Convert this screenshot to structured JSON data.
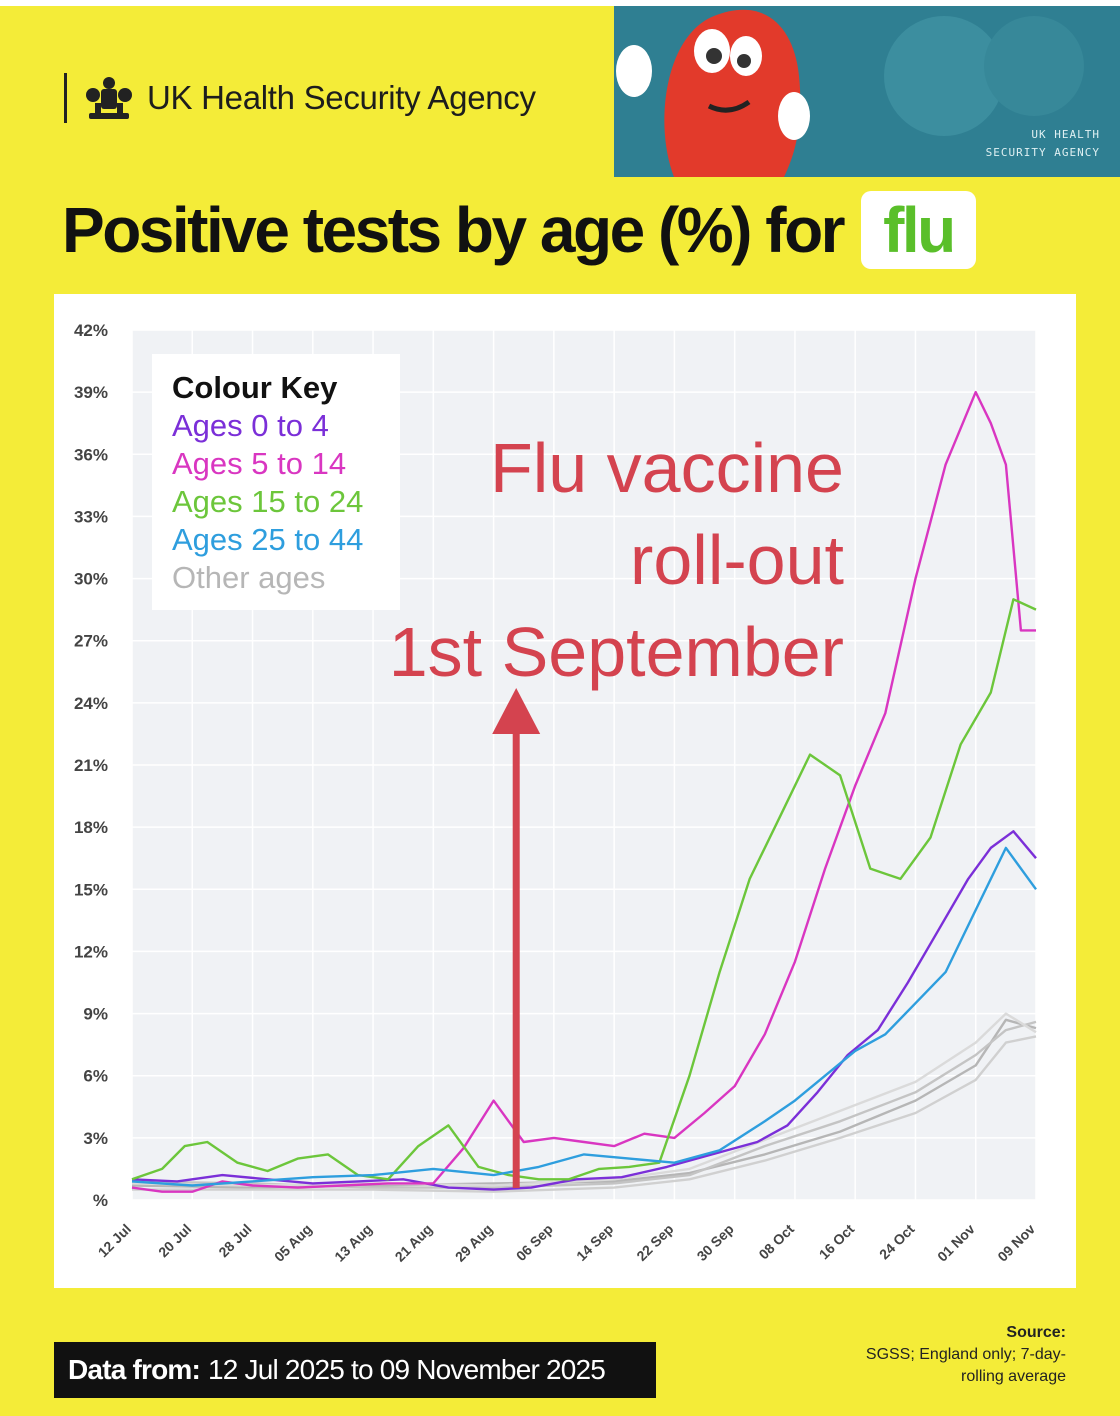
{
  "header": {
    "agency_name": "UK Health Security Agency",
    "banner_text": "UK HEALTH\nSECURITY AGENCY"
  },
  "title": {
    "main": "Positive tests by age (%) for",
    "highlight": "flu"
  },
  "legend": {
    "title": "Colour Key",
    "items": [
      {
        "label": "Ages 0 to 4",
        "color": "#7b2fd8"
      },
      {
        "label": "Ages 5 to 14",
        "color": "#d936c1"
      },
      {
        "label": "Ages 15 to 24",
        "color": "#6cc63b"
      },
      {
        "label": "Ages 25 to 44",
        "color": "#2e9ede"
      },
      {
        "label": "Other ages",
        "color": "#b6b6b6"
      }
    ]
  },
  "annotation": {
    "line1": "Flu vaccine",
    "line2": "roll-out",
    "line3": "1st September",
    "color": "#d4434f"
  },
  "footer": {
    "data_from_label": "Data from:",
    "data_from_value": "12 Jul 2025 to 09 November 2025",
    "source_label": "Source:",
    "source_line1": "SGSS; England only; 7-day-",
    "source_line2": "rolling average"
  },
  "chart_data": {
    "type": "line",
    "ylim": [
      0,
      42
    ],
    "y_ticks": [
      "%",
      "3%",
      "6%",
      "9%",
      "12%",
      "15%",
      "18%",
      "21%",
      "24%",
      "27%",
      "30%",
      "33%",
      "36%",
      "39%",
      "42%"
    ],
    "x_ticks": [
      "12 Jul",
      "20 Jul",
      "28 Jul",
      "05 Aug",
      "13 Aug",
      "21 Aug",
      "29 Aug",
      "06 Sep",
      "14 Sep",
      "22 Sep",
      "30 Sep",
      "08 Oct",
      "16 Oct",
      "24 Oct",
      "01 Nov",
      "09 Nov"
    ],
    "x_range": [
      "2025-07-12",
      "2025-11-09"
    ],
    "annotation_arrow_date": "2025-09-01",
    "grid": true,
    "series": [
      {
        "name": "Ages 0 to 4",
        "color": "#7b2fd8",
        "points": [
          [
            "2025-07-12",
            1.0
          ],
          [
            "2025-07-18",
            0.9
          ],
          [
            "2025-07-24",
            1.2
          ],
          [
            "2025-07-30",
            1.0
          ],
          [
            "2025-08-05",
            0.8
          ],
          [
            "2025-08-11",
            0.9
          ],
          [
            "2025-08-17",
            1.0
          ],
          [
            "2025-08-23",
            0.6
          ],
          [
            "2025-08-29",
            0.5
          ],
          [
            "2025-09-03",
            0.6
          ],
          [
            "2025-09-09",
            1.0
          ],
          [
            "2025-09-15",
            1.1
          ],
          [
            "2025-09-21",
            1.6
          ],
          [
            "2025-09-27",
            2.2
          ],
          [
            "2025-10-03",
            2.8
          ],
          [
            "2025-10-07",
            3.6
          ],
          [
            "2025-10-11",
            5.2
          ],
          [
            "2025-10-15",
            7.0
          ],
          [
            "2025-10-19",
            8.2
          ],
          [
            "2025-10-23",
            10.5
          ],
          [
            "2025-10-27",
            13.0
          ],
          [
            "2025-10-31",
            15.5
          ],
          [
            "2025-11-03",
            17.0
          ],
          [
            "2025-11-06",
            17.8
          ],
          [
            "2025-11-09",
            16.5
          ]
        ]
      },
      {
        "name": "Ages 5 to 14",
        "color": "#d936c1",
        "points": [
          [
            "2025-07-12",
            0.6
          ],
          [
            "2025-07-16",
            0.4
          ],
          [
            "2025-07-20",
            0.4
          ],
          [
            "2025-07-24",
            0.9
          ],
          [
            "2025-07-28",
            0.7
          ],
          [
            "2025-08-03",
            0.6
          ],
          [
            "2025-08-09",
            0.7
          ],
          [
            "2025-08-15",
            0.8
          ],
          [
            "2025-08-21",
            0.8
          ],
          [
            "2025-08-25",
            2.5
          ],
          [
            "2025-08-29",
            4.8
          ],
          [
            "2025-09-02",
            2.8
          ],
          [
            "2025-09-06",
            3.0
          ],
          [
            "2025-09-10",
            2.8
          ],
          [
            "2025-09-14",
            2.6
          ],
          [
            "2025-09-18",
            3.2
          ],
          [
            "2025-09-22",
            3.0
          ],
          [
            "2025-09-26",
            4.2
          ],
          [
            "2025-09-30",
            5.5
          ],
          [
            "2025-10-04",
            8.0
          ],
          [
            "2025-10-08",
            11.5
          ],
          [
            "2025-10-12",
            16.0
          ],
          [
            "2025-10-16",
            20.0
          ],
          [
            "2025-10-20",
            23.5
          ],
          [
            "2025-10-24",
            30.0
          ],
          [
            "2025-10-28",
            35.5
          ],
          [
            "2025-11-01",
            39.0
          ],
          [
            "2025-11-03",
            37.5
          ],
          [
            "2025-11-05",
            35.5
          ],
          [
            "2025-11-07",
            27.5
          ],
          [
            "2025-11-09",
            27.5
          ]
        ]
      },
      {
        "name": "Ages 15 to 24",
        "color": "#6cc63b",
        "points": [
          [
            "2025-07-12",
            1.0
          ],
          [
            "2025-07-16",
            1.5
          ],
          [
            "2025-07-19",
            2.6
          ],
          [
            "2025-07-22",
            2.8
          ],
          [
            "2025-07-26",
            1.8
          ],
          [
            "2025-07-30",
            1.4
          ],
          [
            "2025-08-03",
            2.0
          ],
          [
            "2025-08-07",
            2.2
          ],
          [
            "2025-08-11",
            1.2
          ],
          [
            "2025-08-15",
            1.0
          ],
          [
            "2025-08-19",
            2.6
          ],
          [
            "2025-08-23",
            3.6
          ],
          [
            "2025-08-27",
            1.6
          ],
          [
            "2025-08-31",
            1.2
          ],
          [
            "2025-09-04",
            1.0
          ],
          [
            "2025-09-08",
            1.0
          ],
          [
            "2025-09-12",
            1.5
          ],
          [
            "2025-09-16",
            1.6
          ],
          [
            "2025-09-20",
            1.8
          ],
          [
            "2025-09-24",
            6.0
          ],
          [
            "2025-09-28",
            11.0
          ],
          [
            "2025-10-02",
            15.5
          ],
          [
            "2025-10-06",
            18.5
          ],
          [
            "2025-10-10",
            21.5
          ],
          [
            "2025-10-14",
            20.5
          ],
          [
            "2025-10-18",
            16.0
          ],
          [
            "2025-10-22",
            15.5
          ],
          [
            "2025-10-26",
            17.5
          ],
          [
            "2025-10-30",
            22.0
          ],
          [
            "2025-11-03",
            24.5
          ],
          [
            "2025-11-06",
            29.0
          ],
          [
            "2025-11-09",
            28.5
          ]
        ]
      },
      {
        "name": "Ages 25 to 44",
        "color": "#2e9ede",
        "points": [
          [
            "2025-07-12",
            0.9
          ],
          [
            "2025-07-20",
            0.7
          ],
          [
            "2025-07-28",
            0.9
          ],
          [
            "2025-08-05",
            1.1
          ],
          [
            "2025-08-13",
            1.2
          ],
          [
            "2025-08-21",
            1.5
          ],
          [
            "2025-08-29",
            1.2
          ],
          [
            "2025-09-04",
            1.6
          ],
          [
            "2025-09-10",
            2.2
          ],
          [
            "2025-09-16",
            2.0
          ],
          [
            "2025-09-22",
            1.8
          ],
          [
            "2025-09-28",
            2.4
          ],
          [
            "2025-10-04",
            3.8
          ],
          [
            "2025-10-08",
            4.8
          ],
          [
            "2025-10-12",
            6.0
          ],
          [
            "2025-10-16",
            7.2
          ],
          [
            "2025-10-20",
            8.0
          ],
          [
            "2025-10-24",
            9.5
          ],
          [
            "2025-10-28",
            11.0
          ],
          [
            "2025-11-01",
            14.0
          ],
          [
            "2025-11-05",
            17.0
          ],
          [
            "2025-11-09",
            15.0
          ]
        ]
      },
      {
        "name": "Other ages",
        "color": "#b6b6b6",
        "points": [
          [
            "2025-07-12",
            0.7
          ],
          [
            "2025-07-28",
            0.6
          ],
          [
            "2025-08-13",
            0.7
          ],
          [
            "2025-08-29",
            0.8
          ],
          [
            "2025-09-14",
            0.9
          ],
          [
            "2025-09-24",
            1.3
          ],
          [
            "2025-10-04",
            2.2
          ],
          [
            "2025-10-14",
            3.3
          ],
          [
            "2025-10-24",
            4.8
          ],
          [
            "2025-11-01",
            6.5
          ],
          [
            "2025-11-05",
            8.7
          ],
          [
            "2025-11-09",
            8.3
          ]
        ]
      },
      {
        "name": "Other ages",
        "color": "#c4c4c4",
        "points": [
          [
            "2025-07-12",
            0.9
          ],
          [
            "2025-07-28",
            0.8
          ],
          [
            "2025-08-13",
            0.6
          ],
          [
            "2025-08-29",
            0.6
          ],
          [
            "2025-09-14",
            0.8
          ],
          [
            "2025-09-24",
            1.2
          ],
          [
            "2025-10-04",
            2.6
          ],
          [
            "2025-10-14",
            3.8
          ],
          [
            "2025-10-24",
            5.2
          ],
          [
            "2025-11-01",
            7.0
          ],
          [
            "2025-11-05",
            8.2
          ],
          [
            "2025-11-09",
            8.6
          ]
        ]
      },
      {
        "name": "Other ages",
        "color": "#d0d0d0",
        "points": [
          [
            "2025-07-12",
            0.5
          ],
          [
            "2025-07-28",
            0.5
          ],
          [
            "2025-08-13",
            0.5
          ],
          [
            "2025-08-29",
            0.4
          ],
          [
            "2025-09-14",
            0.6
          ],
          [
            "2025-09-24",
            1.0
          ],
          [
            "2025-10-04",
            1.9
          ],
          [
            "2025-10-14",
            3.0
          ],
          [
            "2025-10-24",
            4.2
          ],
          [
            "2025-11-01",
            5.8
          ],
          [
            "2025-11-05",
            7.6
          ],
          [
            "2025-11-09",
            7.9
          ]
        ]
      },
      {
        "name": "Other ages",
        "color": "#dadada",
        "points": [
          [
            "2025-07-12",
            0.8
          ],
          [
            "2025-07-28",
            0.7
          ],
          [
            "2025-08-13",
            0.8
          ],
          [
            "2025-08-29",
            0.7
          ],
          [
            "2025-09-14",
            1.0
          ],
          [
            "2025-09-24",
            1.5
          ],
          [
            "2025-10-04",
            2.9
          ],
          [
            "2025-10-14",
            4.3
          ],
          [
            "2025-10-24",
            5.7
          ],
          [
            "2025-11-01",
            7.6
          ],
          [
            "2025-11-05",
            9.0
          ],
          [
            "2025-11-09",
            8.1
          ]
        ]
      }
    ]
  }
}
